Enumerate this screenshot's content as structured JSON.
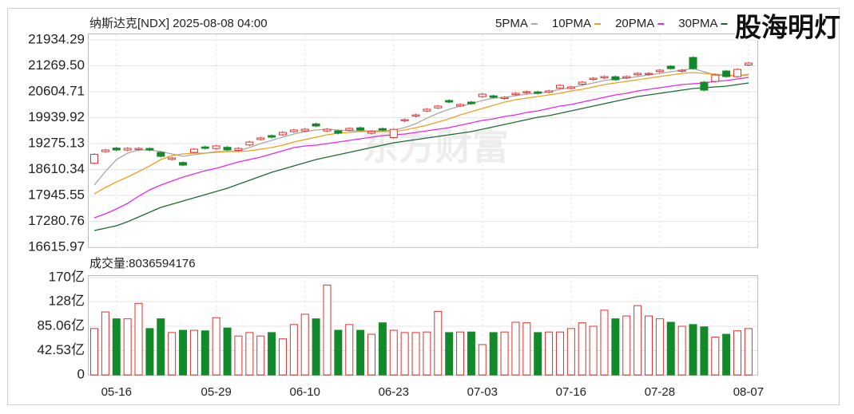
{
  "overlay": "股海明灯",
  "chart_data": [
    {
      "type": "candlestick",
      "title": "纳斯达克[NDX] 2025-08-08 04:00",
      "watermark": "东方财富",
      "up_color": "#e0302f",
      "down_color": "#138a2a",
      "grid": true,
      "legend": "top-right",
      "ylim": [
        16615.97,
        21934.29
      ],
      "yticks": [
        21934.29,
        {
          "value": 21269.5,
          "label": "21269.50"
        },
        20604.71,
        19939.92,
        19275.13,
        18610.34,
        17945.55,
        17280.76,
        16615.97
      ],
      "open": [
        18770,
        19070,
        19160,
        19110,
        19120,
        19150,
        19050,
        18870,
        18790,
        19050,
        19190,
        19150,
        19180,
        19100,
        19240,
        19380,
        19480,
        19500,
        19580,
        19600,
        19780,
        19600,
        19600,
        19620,
        19680,
        19540,
        19660,
        19430,
        19860,
        19980,
        20110,
        20190,
        20380,
        20240,
        20340,
        20480,
        20500,
        20430,
        20530,
        20580,
        20600,
        20590,
        20700,
        20690,
        20800,
        20920,
        20960,
        20990,
        20960,
        21040,
        21050,
        21120,
        21260,
        21130,
        21484,
        20850,
        20870,
        21136,
        20993,
        21290
      ],
      "high": [
        19030,
        19141,
        19190,
        19182,
        19182,
        19180,
        19080,
        18937,
        18820,
        19162,
        19220,
        19244,
        19210,
        19182,
        19346,
        19448,
        19510,
        19591,
        19653,
        19673,
        19810,
        19673,
        19630,
        19694,
        19710,
        19612,
        19690,
        19670,
        19919,
        20041,
        20185,
        20266,
        20410,
        20307,
        20370,
        20573,
        20530,
        20491,
        20594,
        20635,
        20630,
        20655,
        20798,
        20757,
        20880,
        20982,
        21023,
        21020,
        21023,
        21105,
        21105,
        21187,
        21290,
        21187,
        21514,
        20880,
        21064,
        21166,
        21207,
        21370
      ],
      "low": [
        18740,
        19040,
        19081,
        19080,
        19090,
        19081,
        18918,
        18840,
        18693,
        19020,
        19122,
        19120,
        19081,
        19070,
        19210,
        19350,
        19409,
        19470,
        19550,
        19570,
        19695,
        19570,
        19511,
        19590,
        19593,
        19510,
        19593,
        19400,
        19830,
        19950,
        20080,
        20160,
        20309,
        20210,
        20268,
        20450,
        20431,
        20400,
        20500,
        20550,
        20534,
        20560,
        20670,
        20660,
        20770,
        20890,
        20930,
        20881,
        20930,
        21010,
        21020,
        21090,
        21168,
        21100,
        21168,
        20615,
        20840,
        20963,
        20963,
        21260
      ],
      "close": [
        19000,
        19111,
        19111,
        19152,
        19152,
        19111,
        18948,
        18907,
        18723,
        19132,
        19152,
        19214,
        19111,
        19152,
        19316,
        19418,
        19439,
        19561,
        19623,
        19643,
        19725,
        19643,
        19541,
        19664,
        19623,
        19582,
        19623,
        19640,
        19889,
        20011,
        20155,
        20236,
        20339,
        20277,
        20298,
        20543,
        20461,
        20461,
        20564,
        20605,
        20564,
        20625,
        20768,
        20727,
        20850,
        20952,
        20993,
        20911,
        20993,
        21075,
        21075,
        21157,
        21198,
        21157,
        21198,
        20645,
        21034,
        20993,
        21177,
        21340
      ],
      "series": [
        {
          "name": "5PMA",
          "color": "#a8a8a8",
          "values": [
            18211,
            18559,
            18866,
            19029,
            19111,
            19111,
            19070,
            19009,
            18948,
            18988,
            19029,
            19070,
            19070,
            19091,
            19173,
            19275,
            19357,
            19439,
            19520,
            19582,
            19623,
            19643,
            19623,
            19602,
            19602,
            19602,
            19602,
            19623,
            19684,
            19786,
            19929,
            20052,
            20155,
            20236,
            20298,
            20380,
            20441,
            20461,
            20502,
            20543,
            20564,
            20605,
            20666,
            20707,
            20768,
            20830,
            20891,
            20932,
            20952,
            20993,
            21034,
            21075,
            21116,
            21157,
            21198,
            21116,
            21034,
            21014,
            21014,
            21055
          ]
        },
        {
          "name": "10PMA",
          "color": "#f0a020",
          "values": [
            17986,
            18150,
            18293,
            18416,
            18559,
            18702,
            18866,
            18968,
            19009,
            19029,
            19029,
            19050,
            19070,
            19070,
            19091,
            19132,
            19173,
            19234,
            19316,
            19377,
            19439,
            19500,
            19541,
            19561,
            19582,
            19582,
            19582,
            19582,
            19623,
            19684,
            19745,
            19827,
            19909,
            20011,
            20093,
            20175,
            20257,
            20339,
            20400,
            20441,
            20482,
            20523,
            20564,
            20625,
            20666,
            20727,
            20789,
            20830,
            20871,
            20911,
            20952,
            20993,
            21034,
            21075,
            21096,
            21075,
            21055,
            21034,
            21014,
            21034
          ]
        },
        {
          "name": "20PMA",
          "color": "#e828e8",
          "values": [
            17373,
            17475,
            17598,
            17741,
            17925,
            18089,
            18211,
            18314,
            18416,
            18498,
            18580,
            18641,
            18723,
            18804,
            18866,
            18927,
            19009,
            19091,
            19173,
            19214,
            19234,
            19275,
            19316,
            19357,
            19398,
            19439,
            19480,
            19500,
            19520,
            19561,
            19602,
            19643,
            19684,
            19745,
            19807,
            19868,
            19909,
            19970,
            20011,
            20073,
            20114,
            20175,
            20236,
            20277,
            20339,
            20400,
            20461,
            20523,
            20564,
            20625,
            20666,
            20707,
            20748,
            20789,
            20809,
            20830,
            20871,
            20891,
            20932,
            20973
          ]
        },
        {
          "name": "30PMA",
          "color": "#1e6b32",
          "values": [
            17045,
            17107,
            17168,
            17270,
            17393,
            17516,
            17639,
            17720,
            17802,
            17884,
            17966,
            18048,
            18130,
            18232,
            18334,
            18436,
            18539,
            18620,
            18702,
            18784,
            18866,
            18927,
            18988,
            19050,
            19111,
            19173,
            19234,
            19296,
            19337,
            19377,
            19418,
            19459,
            19500,
            19541,
            19582,
            19643,
            19704,
            19766,
            19827,
            19889,
            19950,
            19991,
            20052,
            20114,
            20175,
            20236,
            20298,
            20359,
            20420,
            20482,
            20523,
            20564,
            20605,
            20645,
            20686,
            20707,
            20727,
            20748,
            20789,
            20830
          ]
        }
      ]
    },
    {
      "type": "bar",
      "title": "成交量:8036594176",
      "grid": true,
      "ylim": [
        0,
        170
      ],
      "yticks": [
        {
          "value": 170,
          "label": "170亿"
        },
        {
          "value": 128,
          "label": "128亿"
        },
        {
          "value": 85.06,
          "label": "85.06亿"
        },
        {
          "value": 42.53,
          "label": "42.53亿"
        },
        0
      ],
      "categories": [
        null,
        null,
        "05-16",
        null,
        null,
        null,
        null,
        null,
        null,
        null,
        null,
        "05-29",
        null,
        null,
        null,
        null,
        null,
        null,
        null,
        "06-10",
        null,
        null,
        null,
        null,
        null,
        null,
        null,
        "06-23",
        null,
        null,
        null,
        null,
        null,
        null,
        null,
        "07-03",
        null,
        null,
        null,
        null,
        null,
        null,
        null,
        "07-16",
        null,
        null,
        null,
        null,
        null,
        null,
        null,
        "07-28",
        null,
        null,
        null,
        null,
        null,
        null,
        null,
        "08-07"
      ],
      "values": [
        81,
        110,
        98,
        98,
        125,
        81,
        98,
        74,
        78,
        78,
        77,
        100,
        82,
        68,
        74,
        68,
        74,
        63,
        88,
        106,
        98,
        157,
        78,
        88,
        78,
        71,
        91,
        78,
        74,
        74,
        75,
        111,
        74,
        75,
        75,
        53,
        74,
        75,
        92,
        91,
        74,
        75,
        75,
        81,
        91,
        85,
        113,
        98,
        103,
        121,
        103,
        98,
        92,
        85,
        88,
        84,
        66,
        71,
        77,
        81
      ]
    }
  ]
}
